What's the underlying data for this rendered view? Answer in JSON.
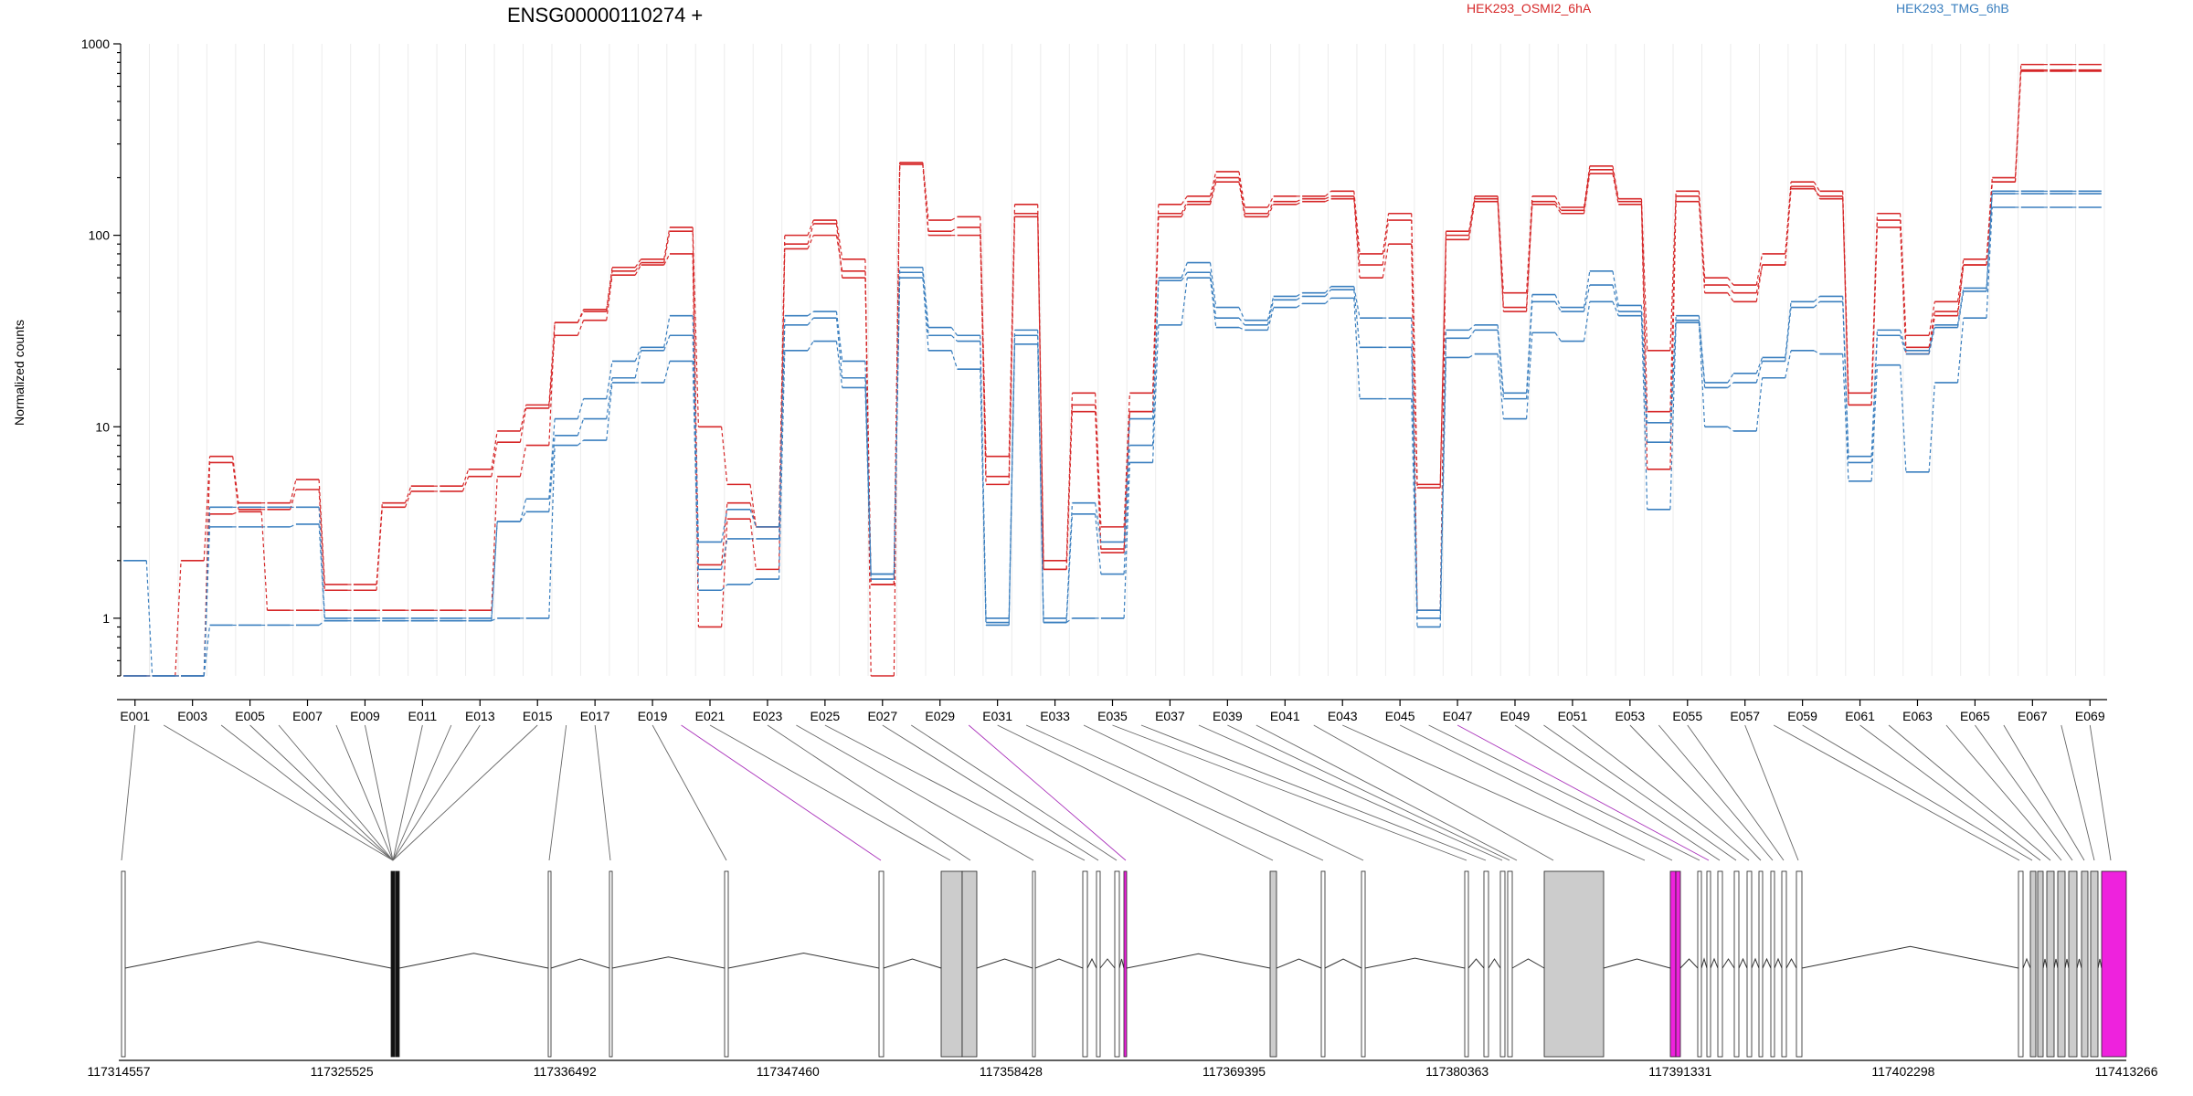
{
  "chart_data": {
    "type": "line",
    "title": "ENSG00000110274 +",
    "ylabel": "Normalized counts",
    "xlabel": "",
    "yscale": "log",
    "ylim": [
      0.5,
      1000
    ],
    "y_ticks": [
      "1",
      "10",
      "100",
      "1000"
    ],
    "exon_labels": [
      "E001",
      "E003",
      "E005",
      "E007",
      "E009",
      "E011",
      "E013",
      "E015",
      "E017",
      "E019",
      "E021",
      "E023",
      "E025",
      "E027",
      "E029",
      "E031",
      "E033",
      "E035",
      "E037",
      "E039",
      "E041",
      "E043",
      "E045",
      "E047",
      "E049",
      "E051",
      "E053",
      "E055",
      "E057",
      "E059",
      "E061",
      "E063",
      "E065",
      "E067",
      "E069"
    ],
    "n_exons": 69,
    "legend": [
      {
        "name": "HEK293_OSMI2_6hA",
        "color": "#d62728"
      },
      {
        "name": "HEK293_TMG_6hB",
        "color": "#3a7fbf"
      }
    ],
    "series": [
      {
        "name": "HEK293_OSMI2_6hA",
        "color": "#d62728",
        "values": [
          0.5,
          0.5,
          2,
          7,
          4,
          4,
          5.3,
          1.5,
          1.5,
          4,
          4.9,
          4.9,
          6,
          9.5,
          13,
          35,
          41,
          68,
          75,
          110,
          10,
          5,
          3,
          100,
          120,
          75,
          0.5,
          240,
          120,
          125,
          7,
          145,
          2,
          15,
          3,
          15,
          145,
          160,
          215,
          140,
          160,
          160,
          170,
          80,
          130,
          5,
          105,
          160,
          50,
          160,
          140,
          230,
          155,
          25,
          170,
          60,
          55,
          80,
          190,
          170,
          15,
          130,
          30,
          45,
          75,
          200,
          780,
          780,
          780
        ]
      },
      {
        "name": "HEK293_OSMI2_6hA",
        "color": "#d62728",
        "values": [
          0.5,
          0.5,
          0.5,
          6.5,
          3.7,
          3.7,
          4.7,
          1.4,
          1.4,
          3.8,
          4.6,
          4.6,
          5.5,
          8.3,
          12.5,
          30,
          36,
          62,
          70,
          80,
          0.9,
          3.3,
          1.8,
          85,
          100,
          65,
          1.5,
          235,
          105,
          110,
          5.5,
          130,
          1.8,
          13,
          2.3,
          12,
          130,
          150,
          200,
          130,
          150,
          155,
          160,
          70,
          120,
          4.8,
          100,
          155,
          42,
          150,
          135,
          220,
          150,
          12,
          160,
          55,
          50,
          70,
          175,
          160,
          13,
          120,
          26,
          40,
          70,
          190,
          730,
          730,
          730
        ]
      },
      {
        "name": "HEK293_OSMI2_6hA",
        "color": "#d62728",
        "values": [
          0.5,
          0.5,
          0.5,
          3.5,
          3.6,
          1.1,
          1.1,
          1.1,
          1.1,
          1.1,
          1.1,
          1.1,
          1.1,
          5.5,
          8,
          35,
          40,
          65,
          72,
          105,
          1.9,
          4,
          3,
          90,
          115,
          60,
          1.5,
          235,
          100,
          100,
          5,
          125,
          1.8,
          12,
          2.2,
          12,
          125,
          145,
          190,
          125,
          145,
          150,
          155,
          60,
          90,
          1.1,
          95,
          150,
          40,
          145,
          130,
          210,
          145,
          6,
          150,
          50,
          45,
          70,
          180,
          155,
          13,
          110,
          24,
          38,
          70,
          190,
          720,
          720,
          720
        ]
      },
      {
        "name": "HEK293_TMG_6hB",
        "color": "#3a7fbf",
        "values": [
          2,
          0.5,
          0.5,
          3.8,
          3.8,
          3.8,
          3.8,
          1,
          1,
          1,
          1,
          1,
          1,
          3.2,
          4.2,
          11,
          14,
          22,
          26,
          38,
          2.5,
          3.7,
          3,
          38,
          40,
          22,
          1.7,
          68,
          33,
          30,
          1,
          32,
          1,
          4,
          2.5,
          11,
          60,
          72,
          42,
          36,
          48,
          50,
          54,
          37,
          37,
          1.1,
          32,
          34,
          15,
          49,
          42,
          65,
          43,
          10.5,
          38,
          17,
          19,
          23,
          45,
          48,
          7,
          32,
          25,
          34,
          53,
          170,
          170,
          170,
          170
        ]
      },
      {
        "name": "HEK293_TMG_6hB",
        "color": "#3a7fbf",
        "values": [
          0.5,
          0.5,
          0.5,
          3,
          3,
          3,
          3.1,
          0.97,
          0.97,
          0.97,
          0.97,
          0.97,
          0.97,
          3.2,
          3.6,
          9,
          11,
          18,
          25,
          30,
          1.8,
          2.6,
          2.6,
          34,
          37,
          18,
          1.7,
          64,
          30,
          28,
          0.95,
          30,
          0.95,
          3.5,
          1.7,
          8,
          58,
          64,
          37,
          34,
          46,
          48,
          52,
          26,
          26,
          1,
          29,
          32,
          14,
          45,
          40,
          55,
          40,
          8.3,
          36,
          16,
          17,
          22,
          42,
          45,
          6.5,
          30,
          24,
          33,
          51,
          165,
          165,
          165,
          165
        ]
      },
      {
        "name": "HEK293_TMG_6hB",
        "color": "#3a7fbf",
        "values": [
          0.5,
          0.5,
          0.5,
          0.92,
          0.92,
          0.92,
          0.92,
          0.97,
          0.97,
          0.97,
          0.97,
          0.97,
          0.97,
          1,
          1,
          8,
          8.5,
          17,
          17,
          22,
          1.4,
          1.5,
          1.6,
          25,
          28,
          16,
          1.6,
          60,
          25,
          20,
          0.92,
          27,
          0.95,
          1,
          1,
          6.5,
          34,
          60,
          33,
          32,
          42,
          44,
          47,
          14,
          14,
          0.9,
          23,
          24,
          11,
          31,
          28,
          45,
          38,
          3.7,
          35,
          10,
          9.5,
          18,
          25,
          24,
          5.2,
          21,
          5.8,
          17,
          37,
          140,
          140,
          140,
          140
        ]
      }
    ],
    "genome_axis_ticks": [
      "117314557",
      "117325525",
      "117336492",
      "117347460",
      "117358428",
      "117369395",
      "117380363",
      "117391331",
      "117402298",
      "117413266"
    ]
  }
}
